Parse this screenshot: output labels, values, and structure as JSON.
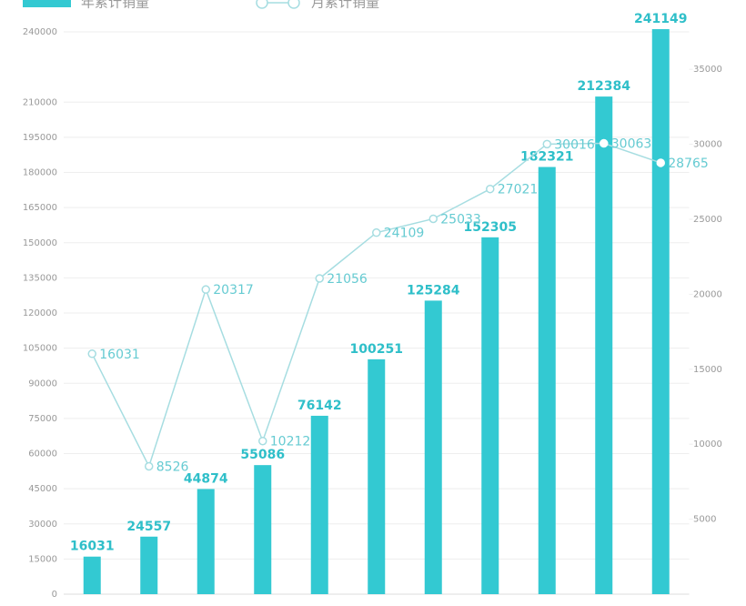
{
  "chart_data": {
    "type": "bar-line",
    "categories": [
      null,
      null,
      null,
      null,
      null,
      null,
      null,
      null,
      null,
      null,
      null
    ],
    "series": [
      {
        "name": "年累计销量",
        "type": "bar",
        "color": "#33c9d2",
        "values": [
          16031,
          24557,
          44874,
          55086,
          76142,
          100251,
          125284,
          152305,
          182321,
          212384,
          241149
        ]
      },
      {
        "name": "月累计销量",
        "type": "line",
        "axis": "y2",
        "color": "#a6dde1",
        "values": [
          16031,
          8526,
          20317,
          10212,
          21056,
          24109,
          25033,
          27021,
          30016,
          30063,
          28765
        ]
      }
    ],
    "ylim": [
      0,
      240000
    ],
    "yticks": [
      0,
      15000,
      30000,
      45000,
      60000,
      75000,
      90000,
      105000,
      120000,
      135000,
      150000,
      165000,
      180000,
      195000,
      210000,
      240000
    ],
    "y2lim": [
      0,
      37500
    ],
    "y2ticks": [
      5000,
      10000,
      15000,
      20000,
      25000,
      30000,
      35000
    ],
    "grid": true,
    "legend": "top"
  }
}
